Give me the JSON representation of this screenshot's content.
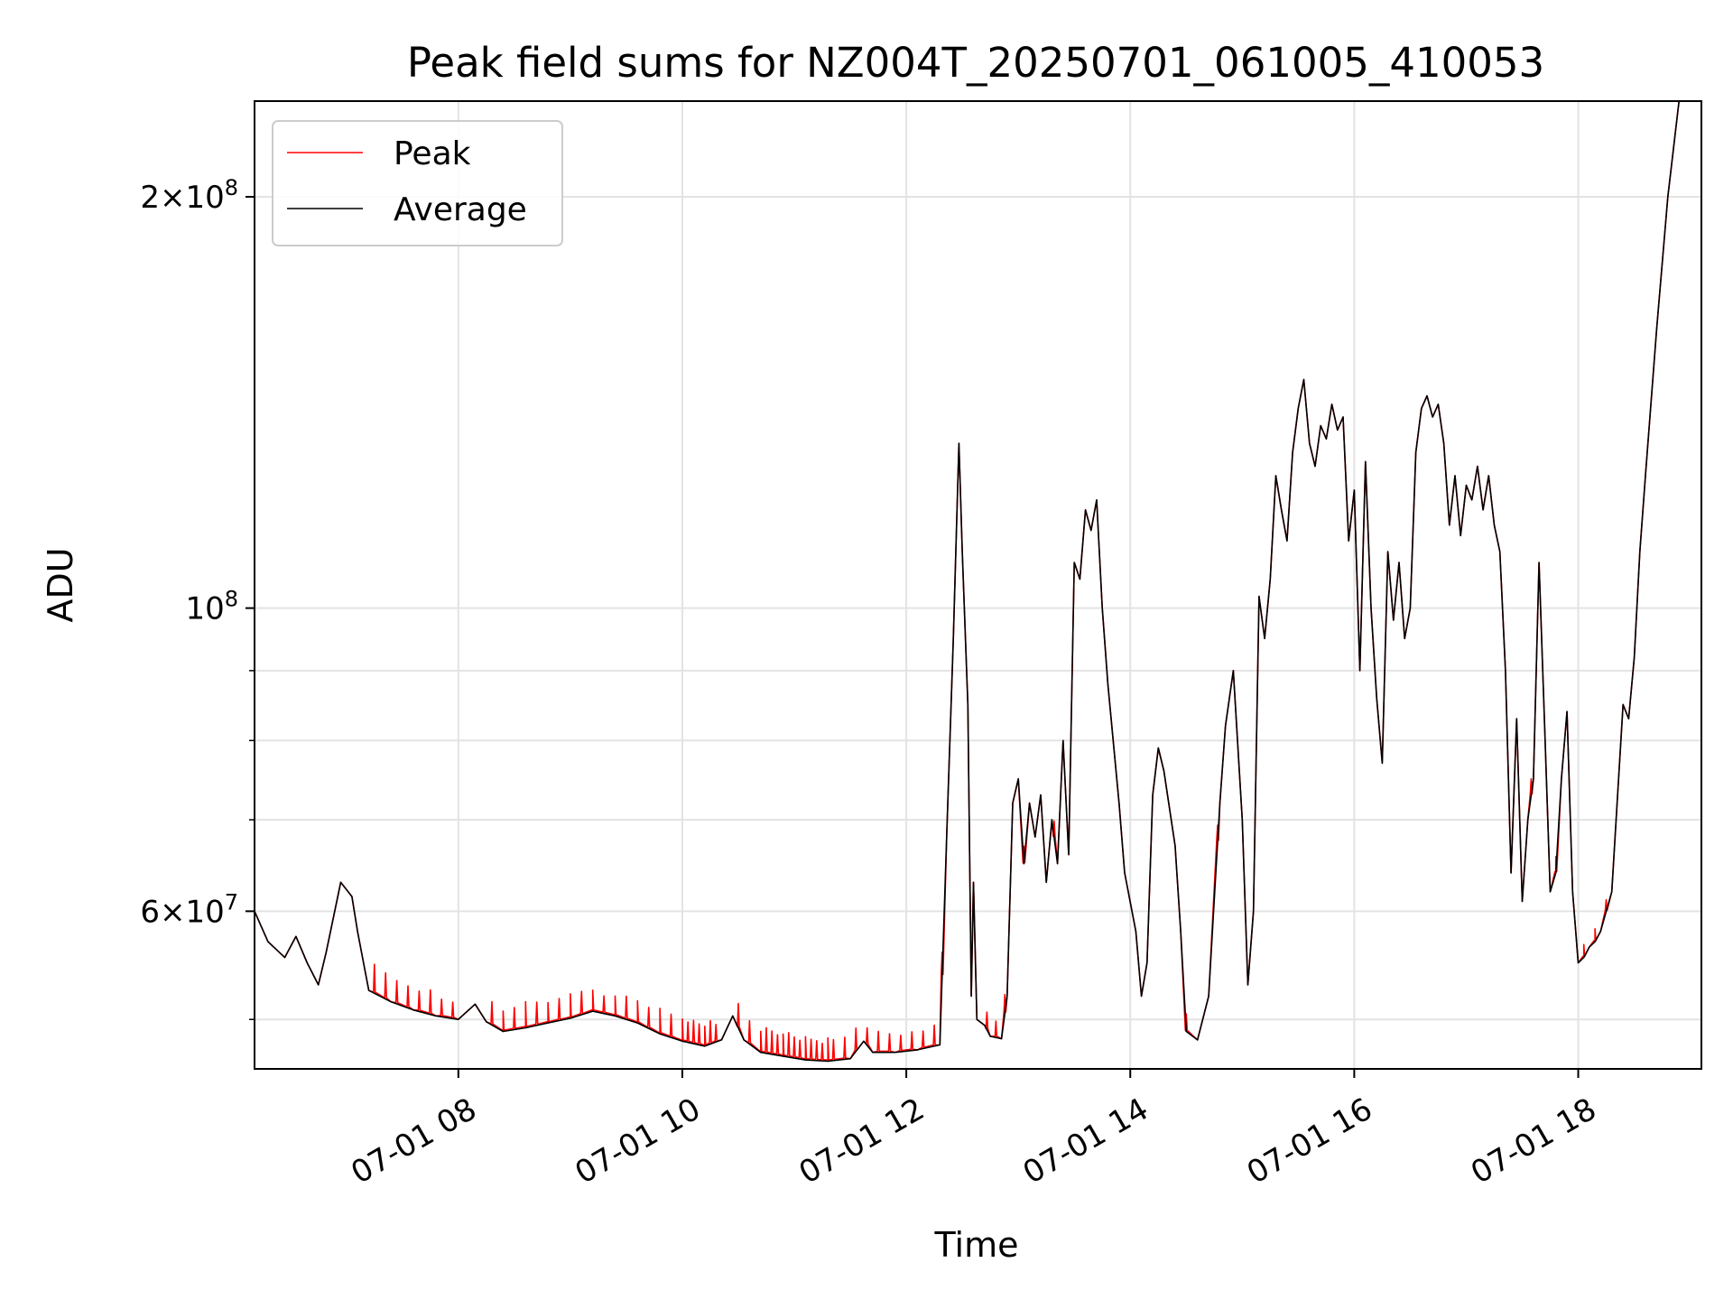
{
  "chart_data": {
    "type": "line",
    "title": "Peak field sums for NZ004T_20250701_061005_410053",
    "xlabel": "Time",
    "ylabel": "ADU",
    "yscale": "log",
    "ylim": [
      46000000,
      235000000
    ],
    "xlim": [
      6.18,
      19.1
    ],
    "grid": true,
    "legend_placement": "top-left",
    "x_ticks": [
      {
        "value": 8,
        "label": "07-01 08"
      },
      {
        "value": 10,
        "label": "07-01 10"
      },
      {
        "value": 12,
        "label": "07-01 12"
      },
      {
        "value": 14,
        "label": "07-01 14"
      },
      {
        "value": 16,
        "label": "07-01 16"
      },
      {
        "value": 18,
        "label": "07-01 18"
      }
    ],
    "y_ticks_major": [
      {
        "value": 200000000,
        "mantissa": "2",
        "exp": "8"
      },
      {
        "value": 100000000,
        "mantissa": "",
        "exp": "8"
      },
      {
        "value": 60000000,
        "mantissa": "6",
        "exp": "7"
      }
    ],
    "y_ticks_minor": [
      50000000,
      70000000,
      80000000,
      90000000
    ],
    "series": [
      {
        "name": "Peak",
        "color": "#ff0000"
      },
      {
        "name": "Average",
        "color": "#000000"
      }
    ],
    "average_points": [
      [
        6.18,
        60000000
      ],
      [
        6.3,
        57000000
      ],
      [
        6.45,
        55500000
      ],
      [
        6.55,
        57500000
      ],
      [
        6.65,
        55000000
      ],
      [
        6.75,
        53000000
      ],
      [
        6.82,
        56000000
      ],
      [
        6.95,
        63000000
      ],
      [
        7.05,
        61500000
      ],
      [
        7.1,
        58000000
      ],
      [
        7.2,
        52500000
      ],
      [
        7.4,
        51500000
      ],
      [
        7.6,
        50800000
      ],
      [
        7.8,
        50300000
      ],
      [
        8.0,
        50000000
      ],
      [
        8.15,
        51300000
      ],
      [
        8.25,
        49800000
      ],
      [
        8.4,
        49000000
      ],
      [
        8.6,
        49300000
      ],
      [
        8.8,
        49700000
      ],
      [
        9.0,
        50100000
      ],
      [
        9.2,
        50700000
      ],
      [
        9.4,
        50300000
      ],
      [
        9.6,
        49700000
      ],
      [
        9.8,
        48800000
      ],
      [
        10.0,
        48200000
      ],
      [
        10.2,
        47800000
      ],
      [
        10.35,
        48300000
      ],
      [
        10.45,
        50300000
      ],
      [
        10.55,
        48300000
      ],
      [
        10.7,
        47300000
      ],
      [
        10.9,
        47000000
      ],
      [
        11.1,
        46700000
      ],
      [
        11.3,
        46600000
      ],
      [
        11.5,
        46800000
      ],
      [
        11.62,
        48200000
      ],
      [
        11.7,
        47300000
      ],
      [
        11.9,
        47300000
      ],
      [
        12.1,
        47500000
      ],
      [
        12.3,
        47900000
      ],
      [
        12.36,
        68000000
      ],
      [
        12.42,
        95000000
      ],
      [
        12.47,
        132000000
      ],
      [
        12.5,
        110000000
      ],
      [
        12.55,
        85000000
      ],
      [
        12.58,
        52000000
      ],
      [
        12.6,
        63000000
      ],
      [
        12.63,
        50000000
      ],
      [
        12.7,
        49500000
      ],
      [
        12.75,
        48600000
      ],
      [
        12.85,
        48400000
      ],
      [
        12.9,
        52000000
      ],
      [
        12.95,
        72000000
      ],
      [
        13.0,
        75000000
      ],
      [
        13.05,
        65000000
      ],
      [
        13.1,
        72000000
      ],
      [
        13.15,
        68000000
      ],
      [
        13.2,
        73000000
      ],
      [
        13.25,
        63000000
      ],
      [
        13.3,
        70000000
      ],
      [
        13.35,
        65000000
      ],
      [
        13.4,
        80000000
      ],
      [
        13.45,
        66000000
      ],
      [
        13.5,
        108000000
      ],
      [
        13.55,
        105000000
      ],
      [
        13.6,
        118000000
      ],
      [
        13.65,
        114000000
      ],
      [
        13.7,
        120000000
      ],
      [
        13.75,
        100000000
      ],
      [
        13.8,
        88000000
      ],
      [
        13.9,
        72000000
      ],
      [
        13.95,
        64000000
      ],
      [
        14.05,
        58000000
      ],
      [
        14.1,
        52000000
      ],
      [
        14.15,
        55000000
      ],
      [
        14.2,
        73000000
      ],
      [
        14.25,
        79000000
      ],
      [
        14.3,
        76000000
      ],
      [
        14.4,
        67000000
      ],
      [
        14.45,
        58000000
      ],
      [
        14.5,
        49000000
      ],
      [
        14.6,
        48300000
      ],
      [
        14.7,
        52000000
      ],
      [
        14.8,
        72000000
      ],
      [
        14.85,
        82000000
      ],
      [
        14.92,
        90000000
      ],
      [
        15.0,
        70000000
      ],
      [
        15.05,
        53000000
      ],
      [
        15.1,
        60000000
      ],
      [
        15.15,
        102000000
      ],
      [
        15.2,
        95000000
      ],
      [
        15.25,
        105000000
      ],
      [
        15.3,
        125000000
      ],
      [
        15.35,
        118000000
      ],
      [
        15.4,
        112000000
      ],
      [
        15.45,
        130000000
      ],
      [
        15.5,
        140000000
      ],
      [
        15.55,
        147000000
      ],
      [
        15.6,
        132000000
      ],
      [
        15.65,
        127000000
      ],
      [
        15.7,
        136000000
      ],
      [
        15.75,
        133000000
      ],
      [
        15.8,
        141000000
      ],
      [
        15.85,
        135000000
      ],
      [
        15.9,
        138000000
      ],
      [
        15.95,
        112000000
      ],
      [
        16.0,
        122000000
      ],
      [
        16.05,
        90000000
      ],
      [
        16.1,
        128000000
      ],
      [
        16.15,
        100000000
      ],
      [
        16.2,
        86000000
      ],
      [
        16.25,
        77000000
      ],
      [
        16.3,
        110000000
      ],
      [
        16.35,
        98000000
      ],
      [
        16.4,
        108000000
      ],
      [
        16.45,
        95000000
      ],
      [
        16.5,
        100000000
      ],
      [
        16.55,
        130000000
      ],
      [
        16.6,
        140000000
      ],
      [
        16.65,
        143000000
      ],
      [
        16.7,
        138000000
      ],
      [
        16.75,
        141000000
      ],
      [
        16.8,
        132000000
      ],
      [
        16.85,
        115000000
      ],
      [
        16.9,
        125000000
      ],
      [
        16.95,
        113000000
      ],
      [
        17.0,
        123000000
      ],
      [
        17.05,
        120000000
      ],
      [
        17.1,
        127000000
      ],
      [
        17.15,
        118000000
      ],
      [
        17.2,
        125000000
      ],
      [
        17.25,
        115000000
      ],
      [
        17.3,
        110000000
      ],
      [
        17.35,
        90000000
      ],
      [
        17.4,
        64000000
      ],
      [
        17.45,
        83000000
      ],
      [
        17.5,
        61000000
      ],
      [
        17.55,
        70000000
      ],
      [
        17.6,
        75000000
      ],
      [
        17.65,
        108000000
      ],
      [
        17.7,
        82000000
      ],
      [
        17.75,
        62000000
      ],
      [
        17.8,
        64000000
      ],
      [
        17.85,
        75000000
      ],
      [
        17.9,
        84000000
      ],
      [
        17.95,
        62000000
      ],
      [
        18.0,
        55000000
      ],
      [
        18.05,
        55500000
      ],
      [
        18.1,
        56500000
      ],
      [
        18.15,
        57000000
      ],
      [
        18.2,
        58000000
      ],
      [
        18.3,
        62000000
      ],
      [
        18.4,
        85000000
      ],
      [
        18.45,
        83000000
      ],
      [
        18.5,
        92000000
      ],
      [
        18.55,
        110000000
      ],
      [
        18.6,
        125000000
      ],
      [
        18.7,
        160000000
      ],
      [
        18.8,
        200000000
      ],
      [
        18.9,
        235000000
      ],
      [
        19.1,
        235000000
      ]
    ],
    "peak_spike_x": [
      7.25,
      7.35,
      7.45,
      7.55,
      7.65,
      7.75,
      7.85,
      7.95,
      8.3,
      8.4,
      8.5,
      8.6,
      8.7,
      8.8,
      8.9,
      9.0,
      9.1,
      9.2,
      9.3,
      9.4,
      9.5,
      9.6,
      9.7,
      9.8,
      9.9,
      10.0,
      10.05,
      10.1,
      10.15,
      10.2,
      10.25,
      10.3,
      10.5,
      10.6,
      10.7,
      10.75,
      10.8,
      10.85,
      10.9,
      10.95,
      11.0,
      11.05,
      11.1,
      11.15,
      11.2,
      11.25,
      11.3,
      11.35,
      11.45,
      11.55,
      11.65,
      11.75,
      11.85,
      11.95,
      12.05,
      12.15,
      12.25,
      12.32,
      12.72,
      12.8,
      12.88,
      13.05,
      13.32,
      14.5,
      14.78,
      17.58,
      17.8,
      18.05,
      18.15,
      18.25
    ],
    "peak_spike_heights": [
      0.05,
      0.045,
      0.04,
      0.038,
      0.035,
      0.042,
      0.03,
      0.028,
      0.04,
      0.035,
      0.038,
      0.045,
      0.04,
      0.035,
      0.038,
      0.042,
      0.04,
      0.036,
      0.03,
      0.034,
      0.04,
      0.038,
      0.036,
      0.044,
      0.04,
      0.038,
      0.035,
      0.04,
      0.036,
      0.034,
      0.04,
      0.03,
      0.042,
      0.04,
      0.036,
      0.044,
      0.04,
      0.035,
      0.038,
      0.042,
      0.036,
      0.032,
      0.04,
      0.036,
      0.034,
      0.03,
      0.04,
      0.036,
      0.038,
      0.04,
      0.03,
      0.036,
      0.032,
      0.028,
      0.032,
      0.03,
      0.036,
      0.04,
      0.03,
      0.028,
      0.032,
      0.03,
      0.028,
      0.03,
      0.028,
      0.028,
      0.028,
      0.022,
      0.022,
      0.02
    ]
  }
}
